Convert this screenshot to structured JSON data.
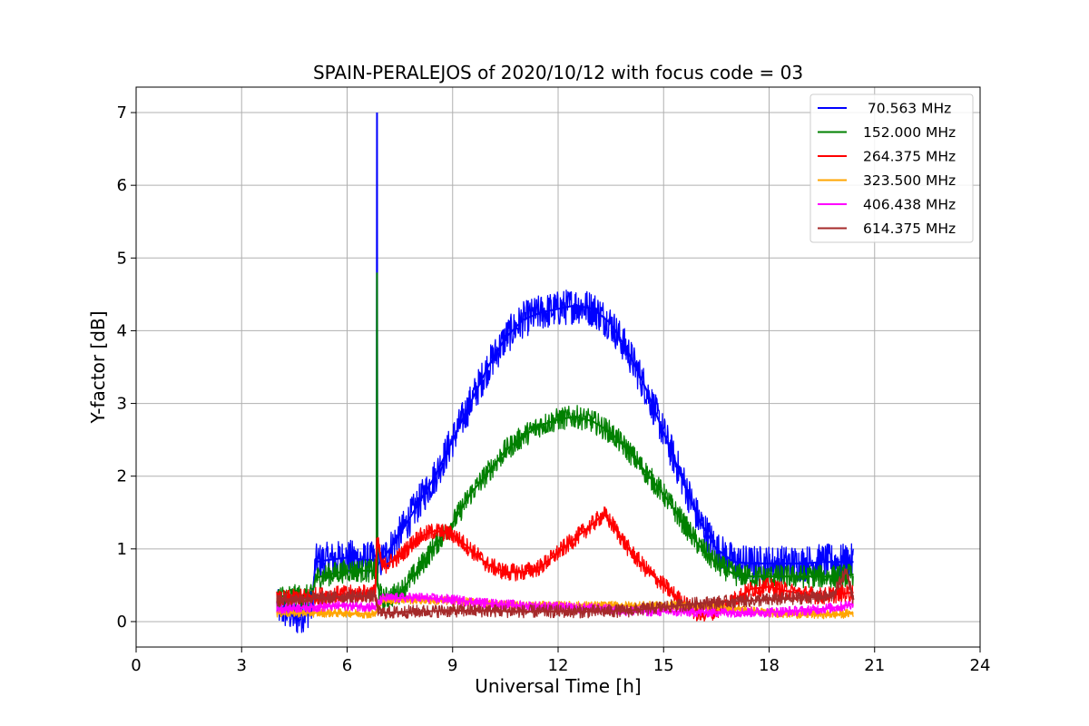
{
  "chart_data": {
    "type": "line",
    "title": "SPAIN-PERALEJOS of 2020/10/12 with focus code = 03",
    "xlabel": "Universal Time [h]",
    "ylabel": "Y-factor [dB]",
    "xlim": [
      0,
      24
    ],
    "ylim": [
      -0.35,
      7.35
    ],
    "xticks": [
      0,
      3,
      6,
      9,
      12,
      15,
      18,
      21,
      24
    ],
    "yticks": [
      0,
      1,
      2,
      3,
      4,
      5,
      6,
      7
    ],
    "grid": true,
    "legend_position": "top-right",
    "series": [
      {
        "name": " 70.563 MHz",
        "color": "#0000ff",
        "noise": 0.25,
        "x": [
          4.0,
          4.6,
          5.0,
          5.1,
          5.5,
          6.0,
          6.5,
          6.84,
          6.85,
          6.86,
          6.9,
          7.0,
          7.5,
          8.0,
          8.5,
          9.0,
          9.5,
          10.0,
          10.5,
          11.0,
          11.5,
          12.0,
          12.5,
          13.0,
          13.5,
          14.0,
          14.5,
          15.0,
          15.5,
          16.0,
          16.5,
          17.0,
          17.5,
          18.0,
          18.5,
          19.0,
          19.5,
          20.0,
          20.4
        ],
        "y": [
          0.2,
          0.05,
          0.2,
          0.82,
          0.85,
          0.88,
          0.85,
          0.85,
          7.0,
          0.75,
          0.8,
          0.85,
          1.2,
          1.6,
          2.0,
          2.5,
          3.0,
          3.5,
          3.9,
          4.15,
          4.25,
          4.3,
          4.35,
          4.3,
          4.1,
          3.7,
          3.2,
          2.6,
          2.0,
          1.4,
          1.0,
          0.82,
          0.8,
          0.8,
          0.8,
          0.8,
          0.82,
          0.82,
          0.82
        ]
      },
      {
        "name": "152.000 MHz",
        "color": "#008000",
        "noise": 0.16,
        "x": [
          4.0,
          5.0,
          5.1,
          5.5,
          6.0,
          6.5,
          6.84,
          6.85,
          6.86,
          7.0,
          7.5,
          8.0,
          8.5,
          9.0,
          9.5,
          10.0,
          10.5,
          11.0,
          11.5,
          12.0,
          12.5,
          13.0,
          13.5,
          14.0,
          14.5,
          15.0,
          15.5,
          16.0,
          16.5,
          17.0,
          17.5,
          18.0,
          18.5,
          19.0,
          19.5,
          20.0,
          20.4
        ],
        "y": [
          0.35,
          0.35,
          0.6,
          0.65,
          0.7,
          0.7,
          0.7,
          4.8,
          0.5,
          0.3,
          0.4,
          0.7,
          1.05,
          1.35,
          1.75,
          2.05,
          2.35,
          2.55,
          2.7,
          2.78,
          2.82,
          2.75,
          2.6,
          2.35,
          2.05,
          1.75,
          1.4,
          1.05,
          0.8,
          0.65,
          0.62,
          0.62,
          0.62,
          0.62,
          0.62,
          0.62,
          0.65
        ]
      },
      {
        "name": "264.375 MHz",
        "color": "#ff0000",
        "noise": 0.12,
        "x": [
          4.0,
          5.0,
          6.0,
          6.8,
          6.85,
          7.0,
          7.5,
          8.0,
          8.5,
          9.0,
          9.5,
          10.0,
          10.5,
          11.0,
          11.5,
          12.0,
          12.5,
          13.0,
          13.3,
          13.6,
          14.0,
          14.5,
          15.0,
          15.5,
          16.0,
          16.5,
          17.0,
          17.5,
          18.0,
          18.5,
          19.0,
          19.5,
          20.0,
          20.4
        ],
        "y": [
          0.3,
          0.35,
          0.38,
          0.4,
          1.15,
          0.75,
          0.9,
          1.15,
          1.25,
          1.2,
          1.0,
          0.78,
          0.68,
          0.68,
          0.75,
          0.95,
          1.15,
          1.35,
          1.48,
          1.3,
          1.0,
          0.72,
          0.5,
          0.28,
          0.1,
          0.15,
          0.3,
          0.45,
          0.48,
          0.42,
          0.38,
          0.35,
          0.38,
          0.4
        ]
      },
      {
        "name": "323.500 MHz",
        "color": "#ffa500",
        "noise": 0.06,
        "x": [
          4.0,
          5.0,
          6.0,
          6.8,
          7.0,
          8.0,
          9.0,
          10.0,
          11.0,
          12.0,
          13.0,
          14.0,
          15.0,
          16.0,
          17.0,
          18.0,
          19.0,
          20.0,
          20.4
        ],
        "y": [
          0.12,
          0.12,
          0.12,
          0.1,
          0.3,
          0.3,
          0.28,
          0.25,
          0.22,
          0.22,
          0.22,
          0.22,
          0.22,
          0.22,
          0.18,
          0.12,
          0.1,
          0.1,
          0.12
        ]
      },
      {
        "name": "406.438 MHz",
        "color": "#ff00ff",
        "noise": 0.07,
        "x": [
          4.0,
          5.0,
          6.0,
          6.8,
          7.0,
          8.0,
          9.0,
          10.0,
          11.0,
          12.0,
          13.0,
          14.0,
          15.0,
          16.0,
          17.0,
          18.0,
          19.0,
          20.0,
          20.4
        ],
        "y": [
          0.18,
          0.2,
          0.22,
          0.2,
          0.32,
          0.33,
          0.3,
          0.25,
          0.22,
          0.2,
          0.18,
          0.15,
          0.14,
          0.13,
          0.13,
          0.13,
          0.15,
          0.2,
          0.25
        ]
      },
      {
        "name": "614.375 MHz",
        "color": "#a52a2a",
        "noise": 0.09,
        "x": [
          4.0,
          5.0,
          6.0,
          6.8,
          6.9,
          8.0,
          9.0,
          10.0,
          11.0,
          12.0,
          13.0,
          14.0,
          15.0,
          16.0,
          17.0,
          18.0,
          19.0,
          19.8,
          20.2,
          20.4
        ],
        "y": [
          0.3,
          0.32,
          0.35,
          0.35,
          0.12,
          0.14,
          0.15,
          0.15,
          0.14,
          0.14,
          0.14,
          0.15,
          0.2,
          0.25,
          0.28,
          0.3,
          0.33,
          0.35,
          0.7,
          0.3
        ]
      }
    ]
  }
}
